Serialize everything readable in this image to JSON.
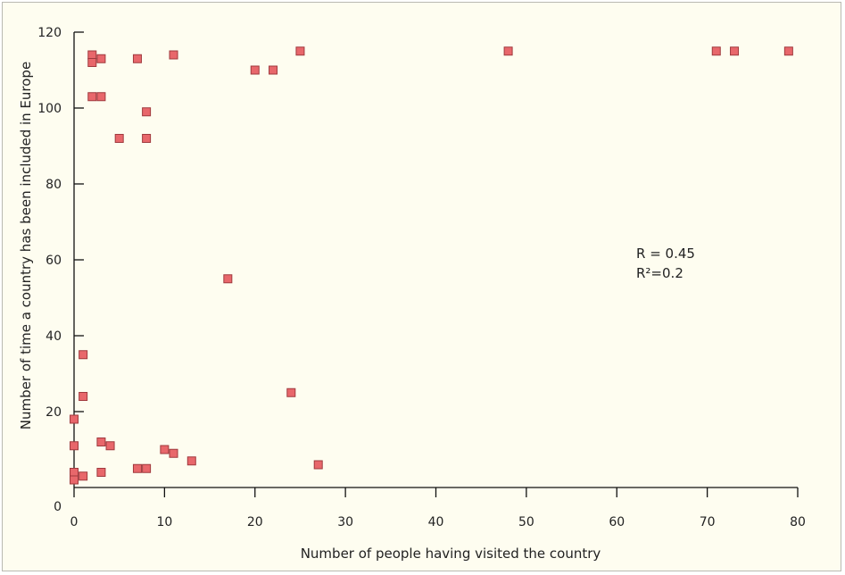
{
  "chart_data": {
    "type": "scatter",
    "xlabel": "Number of people having visited the country",
    "ylabel": "Number of time a country has been included in Europe",
    "xlim": [
      0,
      80
    ],
    "ylim": [
      0,
      120
    ],
    "x_ticks": [
      0,
      10,
      20,
      30,
      40,
      50,
      60,
      70,
      80
    ],
    "y_ticks": [
      0,
      20,
      40,
      60,
      80,
      100,
      120
    ],
    "grid": false,
    "marker_color": "#e8676b",
    "marker_edge": "#a03a3e",
    "annotations": [
      "R = 0.45",
      "R²=0.2"
    ],
    "points": [
      {
        "x": 2,
        "y": 114
      },
      {
        "x": 2,
        "y": 112
      },
      {
        "x": 3,
        "y": 113
      },
      {
        "x": 7,
        "y": 113
      },
      {
        "x": 11,
        "y": 114
      },
      {
        "x": 25,
        "y": 115
      },
      {
        "x": 48,
        "y": 115
      },
      {
        "x": 71,
        "y": 115
      },
      {
        "x": 73,
        "y": 115
      },
      {
        "x": 79,
        "y": 115
      },
      {
        "x": 20,
        "y": 110
      },
      {
        "x": 22,
        "y": 110
      },
      {
        "x": 2,
        "y": 103
      },
      {
        "x": 3,
        "y": 103
      },
      {
        "x": 8,
        "y": 99
      },
      {
        "x": 5,
        "y": 92
      },
      {
        "x": 8,
        "y": 92
      },
      {
        "x": 17,
        "y": 55
      },
      {
        "x": 1,
        "y": 35
      },
      {
        "x": 24,
        "y": 25
      },
      {
        "x": 1,
        "y": 24
      },
      {
        "x": 0,
        "y": 18
      },
      {
        "x": 3,
        "y": 12
      },
      {
        "x": 0,
        "y": 11
      },
      {
        "x": 4,
        "y": 11
      },
      {
        "x": 10,
        "y": 10
      },
      {
        "x": 11,
        "y": 9
      },
      {
        "x": 13,
        "y": 7
      },
      {
        "x": 27,
        "y": 6
      },
      {
        "x": 7,
        "y": 5
      },
      {
        "x": 8,
        "y": 5
      },
      {
        "x": 3,
        "y": 4
      },
      {
        "x": 0,
        "y": 4
      },
      {
        "x": 1,
        "y": 3
      },
      {
        "x": 0,
        "y": 2
      }
    ]
  }
}
